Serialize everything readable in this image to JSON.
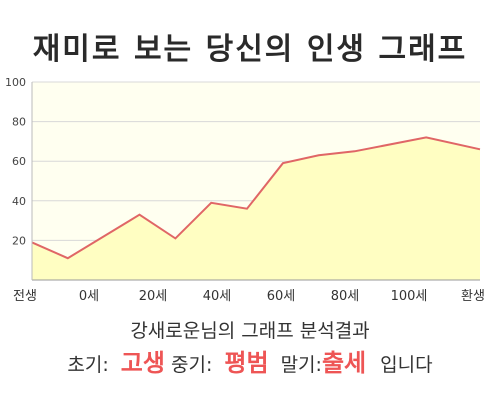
{
  "title": "재미로 보는 당신의 인생 그래프",
  "summary": "강새로운님의 그래프 분석결과",
  "stages": {
    "early_label": "초기:",
    "early_value": "고생",
    "mid_label": "중기:",
    "mid_value": "평범",
    "late_label": "말기:",
    "late_value": "출세",
    "ending": "입니다"
  },
  "colors": {
    "line": "#e06666",
    "fill": "#fffec2",
    "plot_background": "#fffff0",
    "stage_value": "#ee5555"
  },
  "chart_data": {
    "type": "area",
    "title": "",
    "xlabel": "",
    "ylabel": "",
    "ylim": [
      0,
      100
    ],
    "y_ticks": [
      20,
      40,
      60,
      80,
      100
    ],
    "grid": true,
    "x_tick_labels": [
      "전생",
      "0세",
      "20세",
      "40세",
      "60세",
      "80세",
      "100세",
      "환생"
    ],
    "x": [
      -10,
      0,
      20,
      30,
      40,
      50,
      60,
      70,
      80,
      100,
      115
    ],
    "series": [
      {
        "values": [
          19,
          11,
          33,
          21,
          39,
          36,
          59,
          63,
          65,
          72,
          66
        ]
      }
    ]
  }
}
